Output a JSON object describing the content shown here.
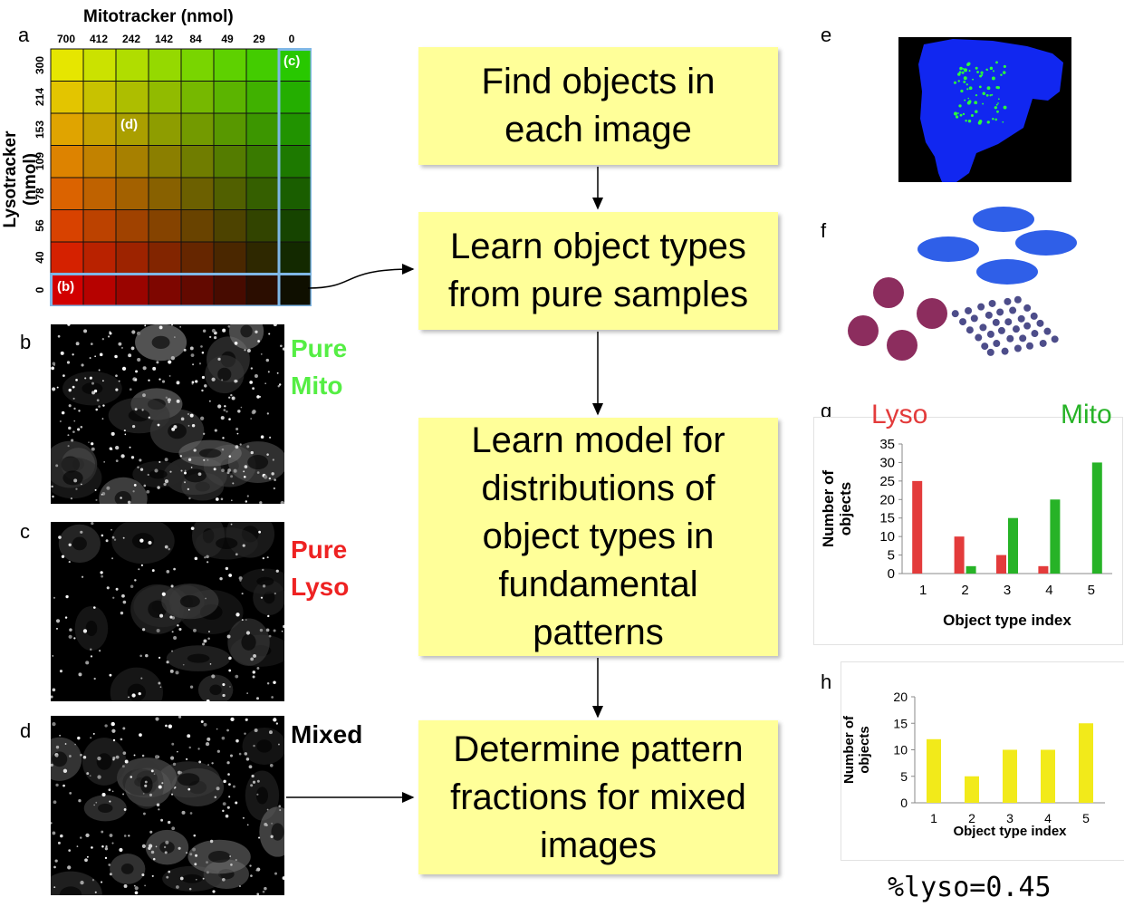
{
  "panel_letters": {
    "a": "a",
    "b": "b",
    "c": "c",
    "d": "d",
    "e": "e",
    "f": "f",
    "g": "g",
    "h": "h"
  },
  "heatmap": {
    "x_title": "Mitotracker (nmol)",
    "y_title": "Lysotracker (nmol)",
    "x_ticks": [
      "700",
      "412",
      "242",
      "142",
      "84",
      "49",
      "29",
      "0"
    ],
    "y_ticks": [
      "300",
      "214",
      "153",
      "109",
      "78",
      "56",
      "40",
      "0"
    ],
    "labels": {
      "b": "(b)",
      "c": "(c)",
      "d": "(d)"
    }
  },
  "micrographs": {
    "b_label": "Pure\nMito",
    "b_color": "#55ee44",
    "c_label": "Pure\nLyso",
    "c_color": "#ee2222",
    "d_label": "Mixed",
    "d_color": "#000000"
  },
  "flow": {
    "step1": "Find objects in\neach image",
    "step2": "Learn object types\nfrom pure samples",
    "step3": "Learn model for\ndistributions of\nobject types in\nfundamental\npatterns",
    "step4": "Determine pattern\nfractions for mixed\nimages",
    "box_color": "#ffff99"
  },
  "chart_g": {
    "legend_lyso": "Lyso",
    "legend_mito": "Mito",
    "lyso_color": "#e33b3b",
    "mito_color": "#27b327"
  },
  "result": "%lyso=0.45",
  "chart_data": [
    {
      "type": "bar",
      "categories": [
        "1",
        "2",
        "3",
        "4",
        "5"
      ],
      "series": [
        {
          "name": "Lyso",
          "values": [
            25,
            10,
            5,
            2,
            0
          ]
        },
        {
          "name": "Mito",
          "values": [
            0,
            2,
            15,
            20,
            30
          ]
        }
      ],
      "title": "",
      "xlabel": "Object type index",
      "ylabel": "Number of objects",
      "ylim": [
        0,
        35
      ],
      "yticks": [
        "0",
        "5",
        "10",
        "15",
        "20",
        "25",
        "30",
        "35"
      ]
    },
    {
      "type": "bar",
      "categories": [
        "1",
        "2",
        "3",
        "4",
        "5"
      ],
      "values": [
        12,
        5,
        10,
        10,
        15
      ],
      "color": "#f2ea1a",
      "title": "",
      "xlabel": "Object type index",
      "ylabel": "Number of objects",
      "ylim": [
        0,
        20
      ],
      "yticks": [
        "0",
        "5",
        "10",
        "15",
        "20"
      ]
    }
  ]
}
